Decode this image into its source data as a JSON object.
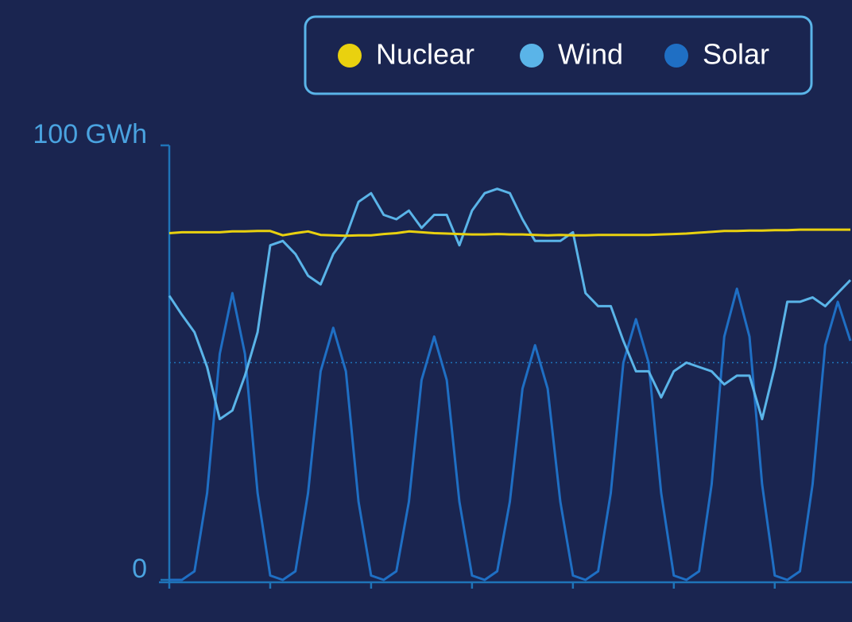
{
  "chart_data": {
    "type": "line",
    "x": [
      0,
      3,
      6,
      9,
      12,
      15,
      18,
      21,
      24,
      27,
      30,
      33,
      36,
      39,
      42,
      45,
      48,
      51,
      54,
      57,
      60,
      63,
      66,
      69,
      72,
      75,
      78,
      81,
      84,
      87,
      90,
      93,
      96,
      99,
      102,
      105,
      108,
      111,
      114,
      117,
      120,
      123,
      126,
      129,
      132,
      135,
      138,
      141,
      144,
      147,
      150,
      153,
      156,
      159,
      162
    ],
    "series": [
      {
        "name": "Nuclear",
        "color": "#e9d10f",
        "values": [
          79.8,
          80,
          80,
          80,
          80,
          80.2,
          80.2,
          80.3,
          80.3,
          79.3,
          79.8,
          80.2,
          79.4,
          79.3,
          79.2,
          79.3,
          79.3,
          79.6,
          79.8,
          80.2,
          80,
          79.8,
          79.7,
          79.6,
          79.5,
          79.5,
          79.6,
          79.5,
          79.5,
          79.4,
          79.3,
          79.4,
          79.3,
          79.3,
          79.4,
          79.4,
          79.4,
          79.4,
          79.4,
          79.5,
          79.6,
          79.7,
          79.9,
          80.1,
          80.3,
          80.3,
          80.4,
          80.4,
          80.5,
          80.5,
          80.6,
          80.6,
          80.6,
          80.6,
          80.6
        ]
      },
      {
        "name": "Wind",
        "color": "#5ab4e8",
        "values": [
          65.4,
          61,
          57,
          49,
          37,
          39,
          47,
          57,
          77,
          78,
          75,
          70,
          68,
          75,
          79,
          87,
          89,
          84,
          83,
          85,
          81,
          84,
          84,
          77,
          85,
          89,
          90,
          89,
          83,
          78,
          78,
          78,
          80,
          66,
          63,
          63,
          55,
          48,
          48,
          42,
          48,
          50,
          49,
          48,
          45,
          47,
          47,
          37,
          49,
          64,
          64,
          65,
          63,
          66,
          69
        ]
      },
      {
        "name": "Solar",
        "color": "#1f6fc4",
        "values": [
          0,
          0,
          2,
          20,
          52,
          66,
          52,
          20,
          1,
          0,
          2,
          20,
          48,
          58,
          48,
          18,
          1,
          0,
          2,
          18,
          46,
          56,
          46,
          18,
          1,
          0,
          2,
          18,
          44,
          54,
          44,
          18,
          1,
          0,
          2,
          20,
          50,
          60,
          50,
          20,
          1,
          0,
          2,
          22,
          56,
          67,
          56,
          22,
          1,
          0,
          2,
          22,
          54,
          64,
          55
        ]
      }
    ],
    "xlim": [
      0,
      162
    ],
    "xticks": [
      0,
      24,
      48,
      72,
      96,
      120,
      144
    ],
    "ylim": [
      0,
      100
    ],
    "yticks": [
      0,
      {
        "value": 100,
        "label": "100 GWh"
      }
    ],
    "ygrid": [
      50
    ]
  }
}
